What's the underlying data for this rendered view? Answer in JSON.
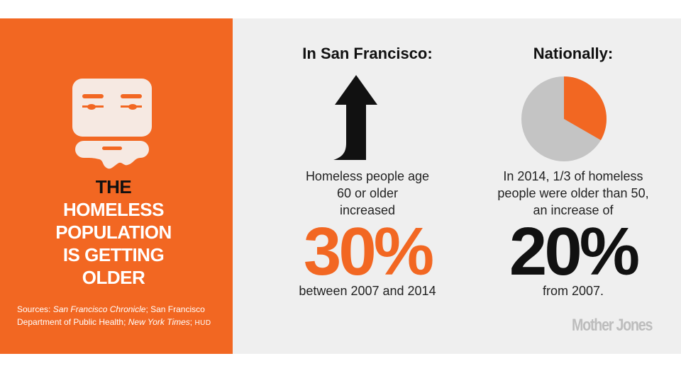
{
  "colors": {
    "orange": "#f26722",
    "light_panel": "#efefef",
    "black": "#111111",
    "pie_gray": "#c4c4c4"
  },
  "left": {
    "title_lines": [
      "THE",
      "HOMELESS",
      "POPULATION",
      "IS GETTING",
      "OLDER"
    ],
    "sources": {
      "prefix": "Sources: ",
      "chronicle": "San Francisco Chronicle",
      "sep1": "; San Francisco Department of Public Health; ",
      "nyt": "New York Times",
      "sep2": "; ",
      "hud": "HUD"
    },
    "icon": "old-man-face-icon"
  },
  "sf": {
    "heading": "In San Francisco:",
    "icon": "up-arrow-icon",
    "desc_lines": [
      "Homeless people age",
      "60 or older",
      "increased"
    ],
    "big_value": "30%",
    "after": "between 2007 and 2014"
  },
  "national": {
    "heading": "Nationally:",
    "icon": "pie-chart-icon",
    "pie_fraction": 0.3333,
    "desc_lines": [
      "In 2014, 1/3 of homeless",
      "people were older than 50,",
      "an increase of"
    ],
    "big_value": "20%",
    "after": "from 2007."
  },
  "brand": "Mother Jones"
}
